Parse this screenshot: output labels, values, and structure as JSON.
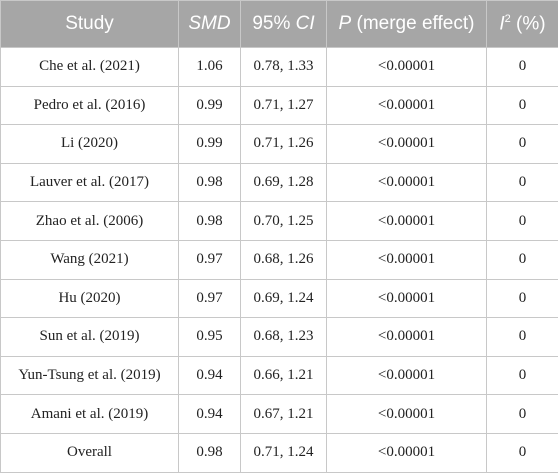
{
  "table": {
    "header": [
      [
        "Study"
      ],
      [
        "SMD"
      ],
      [
        "95% ",
        "CI"
      ],
      [
        "P",
        " (merge effect)"
      ],
      [
        "I",
        "2",
        " (%)"
      ]
    ],
    "rows": [
      [
        "Che et al. (2021)",
        "1.06",
        "0.78, 1.33",
        "<0.00001",
        "0"
      ],
      [
        "Pedro et al. (2016)",
        "0.99",
        "0.71, 1.27",
        "<0.00001",
        "0"
      ],
      [
        "Li (2020)",
        "0.99",
        "0.71, 1.26",
        "<0.00001",
        "0"
      ],
      [
        "Lauver et al. (2017)",
        "0.98",
        "0.69, 1.28",
        "<0.00001",
        "0"
      ],
      [
        "Zhao et al. (2006)",
        "0.98",
        "0.70, 1.25",
        "<0.00001",
        "0"
      ],
      [
        "Wang (2021)",
        "0.97",
        "0.68, 1.26",
        "<0.00001",
        "0"
      ],
      [
        "Hu (2020)",
        "0.97",
        "0.69, 1.24",
        "<0.00001",
        "0"
      ],
      [
        "Sun et al. (2019)",
        "0.95",
        "0.68, 1.23",
        "<0.00001",
        "0"
      ],
      [
        "Yun-Tsung et al. (2019)",
        "0.94",
        "0.66, 1.21",
        "<0.00001",
        "0"
      ],
      [
        "Amani et al. (2019)",
        "0.94",
        "0.67, 1.21",
        "<0.00001",
        "0"
      ],
      [
        "Overall",
        "0.98",
        "0.71, 1.24",
        "<0.00001",
        "0"
      ]
    ]
  }
}
